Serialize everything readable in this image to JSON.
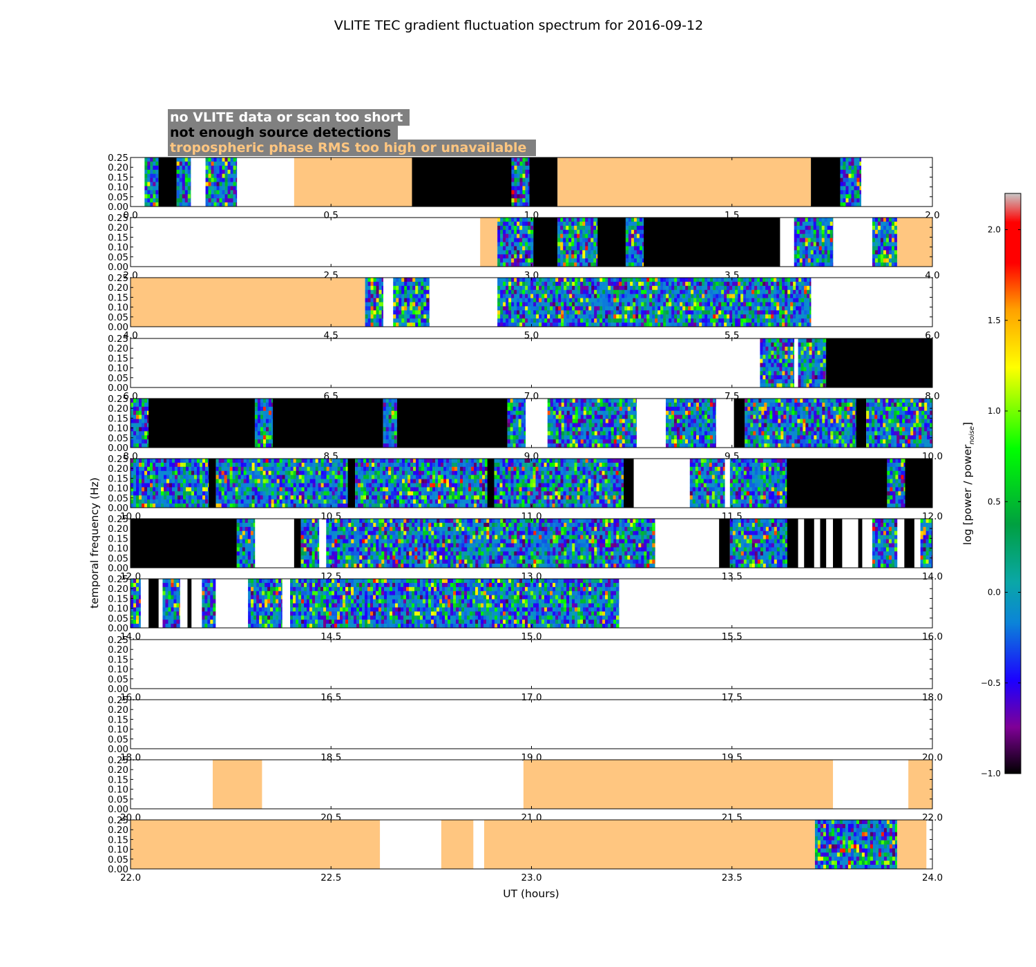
{
  "chart_data": {
    "type": "heatmap",
    "title": "VLITE TEC gradient fluctuation spectrum for 2016-09-12",
    "xlabel": "UT (hours)",
    "ylabel": "temporal frequency (Hz)",
    "ylim": [
      0,
      0.25
    ],
    "ytick_labels": [
      "0.00",
      "0.05",
      "0.10",
      "0.15",
      "0.20",
      "0.25"
    ],
    "colorbar": {
      "label_main": "log [power / power",
      "label_sub": "noise",
      "label_end": "]",
      "range": [
        -1.0,
        2.2
      ],
      "tick_labels": [
        "−1.0",
        "−0.5",
        "0.0",
        "0.5",
        "1.0",
        "1.5",
        "2.0"
      ],
      "colors": [
        "#000000",
        "#7f0096",
        "#1c00ff",
        "#0b84d8",
        "#0aa7a7",
        "#00a040",
        "#00ff00",
        "#ffff00",
        "#ffa000",
        "#ff0000",
        "#c0c0c0"
      ]
    },
    "legend": [
      {
        "text": "no VLITE data or scan too short",
        "color": "#ffffff",
        "meaning": "no-data"
      },
      {
        "text": "not enough source detections",
        "color": "#000000",
        "meaning": "few-detections"
      },
      {
        "text": "tropospheric phase RMS too high or unavailable",
        "color": "#ffc680",
        "meaning": "tropo"
      }
    ],
    "legend_box_color": "#808080",
    "tropo_color": "#ffc680",
    "panels": [
      {
        "x_range": [
          0,
          2
        ],
        "tick_labels": [
          "0.0",
          "0.5",
          "1.0",
          "1.5",
          "2.0"
        ],
        "segments": [
          {
            "start": 0.035,
            "end": 0.07,
            "kind": "spectrum"
          },
          {
            "start": 0.07,
            "end": 0.115,
            "kind": "black"
          },
          {
            "start": 0.115,
            "end": 0.15,
            "kind": "spectrum"
          },
          {
            "start": 0.187,
            "end": 0.265,
            "kind": "spectrum"
          },
          {
            "start": 0.408,
            "end": 0.702,
            "kind": "tropo"
          },
          {
            "start": 0.702,
            "end": 0.95,
            "kind": "black"
          },
          {
            "start": 0.95,
            "end": 0.995,
            "kind": "spectrum"
          },
          {
            "start": 0.995,
            "end": 1.065,
            "kind": "black"
          },
          {
            "start": 1.065,
            "end": 1.697,
            "kind": "tropo"
          },
          {
            "start": 1.697,
            "end": 1.77,
            "kind": "black"
          },
          {
            "start": 1.77,
            "end": 1.822,
            "kind": "spectrum"
          }
        ]
      },
      {
        "x_range": [
          2,
          4
        ],
        "tick_labels": [
          "2.0",
          "2.5",
          "3.0",
          "3.5",
          "4.0"
        ],
        "segments": [
          {
            "start": 2.872,
            "end": 2.915,
            "kind": "tropo"
          },
          {
            "start": 2.915,
            "end": 3.005,
            "kind": "spectrum"
          },
          {
            "start": 3.005,
            "end": 3.065,
            "kind": "black"
          },
          {
            "start": 3.065,
            "end": 3.165,
            "kind": "spectrum"
          },
          {
            "start": 3.165,
            "end": 3.235,
            "kind": "black"
          },
          {
            "start": 3.235,
            "end": 3.28,
            "kind": "spectrum"
          },
          {
            "start": 3.28,
            "end": 3.62,
            "kind": "black"
          },
          {
            "start": 3.655,
            "end": 3.752,
            "kind": "spectrum"
          },
          {
            "start": 3.85,
            "end": 3.912,
            "kind": "spectrum"
          },
          {
            "start": 3.912,
            "end": 4.0,
            "kind": "tropo"
          }
        ]
      },
      {
        "x_range": [
          4,
          6
        ],
        "tick_labels": [
          "4.0",
          "4.5",
          "5.0",
          "5.5",
          "6.0"
        ],
        "segments": [
          {
            "start": 4.0,
            "end": 4.585,
            "kind": "tropo"
          },
          {
            "start": 4.585,
            "end": 4.63,
            "kind": "spectrum"
          },
          {
            "start": 4.655,
            "end": 4.745,
            "kind": "spectrum"
          },
          {
            "start": 4.915,
            "end": 5.697,
            "kind": "spectrum"
          }
        ]
      },
      {
        "x_range": [
          6,
          8
        ],
        "tick_labels": [
          "6.0",
          "6.5",
          "7.0",
          "7.5",
          "8.0"
        ],
        "segments": [
          {
            "start": 7.57,
            "end": 7.655,
            "kind": "spectrum"
          },
          {
            "start": 7.665,
            "end": 7.735,
            "kind": "spectrum"
          },
          {
            "start": 7.735,
            "end": 8.0,
            "kind": "black"
          }
        ]
      },
      {
        "x_range": [
          8,
          10
        ],
        "tick_labels": [
          "8.0",
          "8.5",
          "9.0",
          "9.5",
          "10.0"
        ],
        "segments": [
          {
            "start": 8.0,
            "end": 8.045,
            "kind": "spectrum"
          },
          {
            "start": 8.045,
            "end": 8.31,
            "kind": "black"
          },
          {
            "start": 8.31,
            "end": 8.355,
            "kind": "spectrum"
          },
          {
            "start": 8.355,
            "end": 8.63,
            "kind": "black"
          },
          {
            "start": 8.63,
            "end": 8.665,
            "kind": "spectrum"
          },
          {
            "start": 8.665,
            "end": 8.94,
            "kind": "black"
          },
          {
            "start": 8.94,
            "end": 8.985,
            "kind": "spectrum"
          },
          {
            "start": 9.04,
            "end": 9.262,
            "kind": "spectrum"
          },
          {
            "start": 9.335,
            "end": 9.46,
            "kind": "spectrum"
          },
          {
            "start": 9.505,
            "end": 9.532,
            "kind": "black"
          },
          {
            "start": 9.532,
            "end": 9.81,
            "kind": "spectrum"
          },
          {
            "start": 9.81,
            "end": 9.835,
            "kind": "black"
          },
          {
            "start": 9.835,
            "end": 10.0,
            "kind": "spectrum"
          }
        ]
      },
      {
        "x_range": [
          10,
          12
        ],
        "tick_labels": [
          "10.0",
          "10.5",
          "11.0",
          "11.5",
          "12.0"
        ],
        "segments": [
          {
            "start": 10.0,
            "end": 10.195,
            "kind": "spectrum"
          },
          {
            "start": 10.195,
            "end": 10.213,
            "kind": "black"
          },
          {
            "start": 10.213,
            "end": 10.542,
            "kind": "spectrum"
          },
          {
            "start": 10.542,
            "end": 10.56,
            "kind": "black"
          },
          {
            "start": 10.56,
            "end": 10.89,
            "kind": "spectrum"
          },
          {
            "start": 10.89,
            "end": 10.907,
            "kind": "black"
          },
          {
            "start": 10.907,
            "end": 11.23,
            "kind": "spectrum"
          },
          {
            "start": 11.23,
            "end": 11.255,
            "kind": "black"
          },
          {
            "start": 11.395,
            "end": 11.482,
            "kind": "spectrum"
          },
          {
            "start": 11.495,
            "end": 11.637,
            "kind": "spectrum"
          },
          {
            "start": 11.637,
            "end": 11.887,
            "kind": "black"
          },
          {
            "start": 11.887,
            "end": 11.932,
            "kind": "spectrum"
          },
          {
            "start": 11.932,
            "end": 12.0,
            "kind": "black"
          }
        ]
      },
      {
        "x_range": [
          12,
          14
        ],
        "tick_labels": [
          "12.0",
          "12.5",
          "13.0",
          "13.5",
          "14.0"
        ],
        "segments": [
          {
            "start": 12.0,
            "end": 12.265,
            "kind": "black"
          },
          {
            "start": 12.265,
            "end": 12.31,
            "kind": "spectrum"
          },
          {
            "start": 12.408,
            "end": 12.425,
            "kind": "black"
          },
          {
            "start": 12.425,
            "end": 12.47,
            "kind": "spectrum"
          },
          {
            "start": 12.488,
            "end": 13.308,
            "kind": "spectrum"
          },
          {
            "start": 13.468,
            "end": 13.495,
            "kind": "black"
          },
          {
            "start": 13.495,
            "end": 13.638,
            "kind": "spectrum"
          },
          {
            "start": 13.638,
            "end": 13.665,
            "kind": "black"
          },
          {
            "start": 13.68,
            "end": 13.705,
            "kind": "black"
          },
          {
            "start": 13.72,
            "end": 13.735,
            "kind": "black"
          },
          {
            "start": 13.752,
            "end": 13.775,
            "kind": "black"
          },
          {
            "start": 13.815,
            "end": 13.825,
            "kind": "black"
          },
          {
            "start": 13.85,
            "end": 13.912,
            "kind": "spectrum"
          },
          {
            "start": 13.93,
            "end": 13.955,
            "kind": "black"
          },
          {
            "start": 13.97,
            "end": 14.0,
            "kind": "spectrum"
          }
        ]
      },
      {
        "x_range": [
          14,
          16
        ],
        "tick_labels": [
          "14.0",
          "14.5",
          "15.0",
          "15.5",
          "16.0"
        ],
        "segments": [
          {
            "start": 14.0,
            "end": 14.025,
            "kind": "spectrum"
          },
          {
            "start": 14.045,
            "end": 14.07,
            "kind": "black"
          },
          {
            "start": 14.08,
            "end": 14.123,
            "kind": "spectrum"
          },
          {
            "start": 14.142,
            "end": 14.152,
            "kind": "black"
          },
          {
            "start": 14.178,
            "end": 14.212,
            "kind": "spectrum"
          },
          {
            "start": 14.293,
            "end": 14.378,
            "kind": "spectrum"
          },
          {
            "start": 14.398,
            "end": 15.218,
            "kind": "spectrum"
          }
        ]
      },
      {
        "x_range": [
          16,
          18
        ],
        "tick_labels": [
          "16.0",
          "16.5",
          "17.0",
          "17.5",
          "18.0"
        ],
        "segments": []
      },
      {
        "x_range": [
          18,
          20
        ],
        "tick_labels": [
          "18.0",
          "18.5",
          "19.0",
          "19.5",
          "20.0"
        ],
        "segments": []
      },
      {
        "x_range": [
          20,
          22
        ],
        "tick_labels": [
          "20.0",
          "20.5",
          "21.0",
          "21.5",
          "22.0"
        ],
        "segments": [
          {
            "start": 20.205,
            "end": 20.328,
            "kind": "tropo"
          },
          {
            "start": 20.98,
            "end": 21.752,
            "kind": "tropo"
          },
          {
            "start": 21.94,
            "end": 22.0,
            "kind": "tropo"
          }
        ]
      },
      {
        "x_range": [
          22,
          24
        ],
        "tick_labels": [
          "22.0",
          "22.5",
          "23.0",
          "23.5",
          "24.0"
        ],
        "segments": [
          {
            "start": 22.0,
            "end": 22.622,
            "kind": "tropo"
          },
          {
            "start": 22.775,
            "end": 22.855,
            "kind": "tropo"
          },
          {
            "start": 22.882,
            "end": 23.707,
            "kind": "tropo"
          },
          {
            "start": 23.707,
            "end": 23.912,
            "kind": "spectrum"
          },
          {
            "start": 23.912,
            "end": 23.985,
            "kind": "tropo"
          }
        ]
      }
    ]
  }
}
